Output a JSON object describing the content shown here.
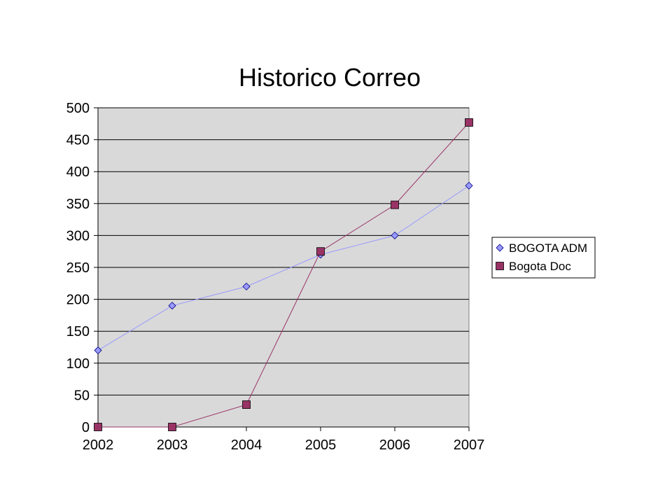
{
  "chart_data": {
    "type": "line",
    "title": "Historico Correo",
    "xlabel": "",
    "ylabel": "",
    "categories": [
      "2002",
      "2003",
      "2004",
      "2005",
      "2006",
      "2007"
    ],
    "ylim": [
      0,
      500
    ],
    "yticks": [
      0,
      50,
      100,
      150,
      200,
      250,
      300,
      350,
      400,
      450,
      500
    ],
    "grid": true,
    "legend_position": "right",
    "series": [
      {
        "name": "BOGOTA ADM",
        "values": [
          120,
          190,
          220,
          270,
          300,
          378
        ],
        "color": "#9999ff",
        "marker": "diamond"
      },
      {
        "name": "Bogota Doc",
        "values": [
          0,
          0,
          35,
          275,
          348,
          477
        ],
        "color": "#993366",
        "marker": "square"
      }
    ],
    "plot_background": "#d9d9d9"
  }
}
